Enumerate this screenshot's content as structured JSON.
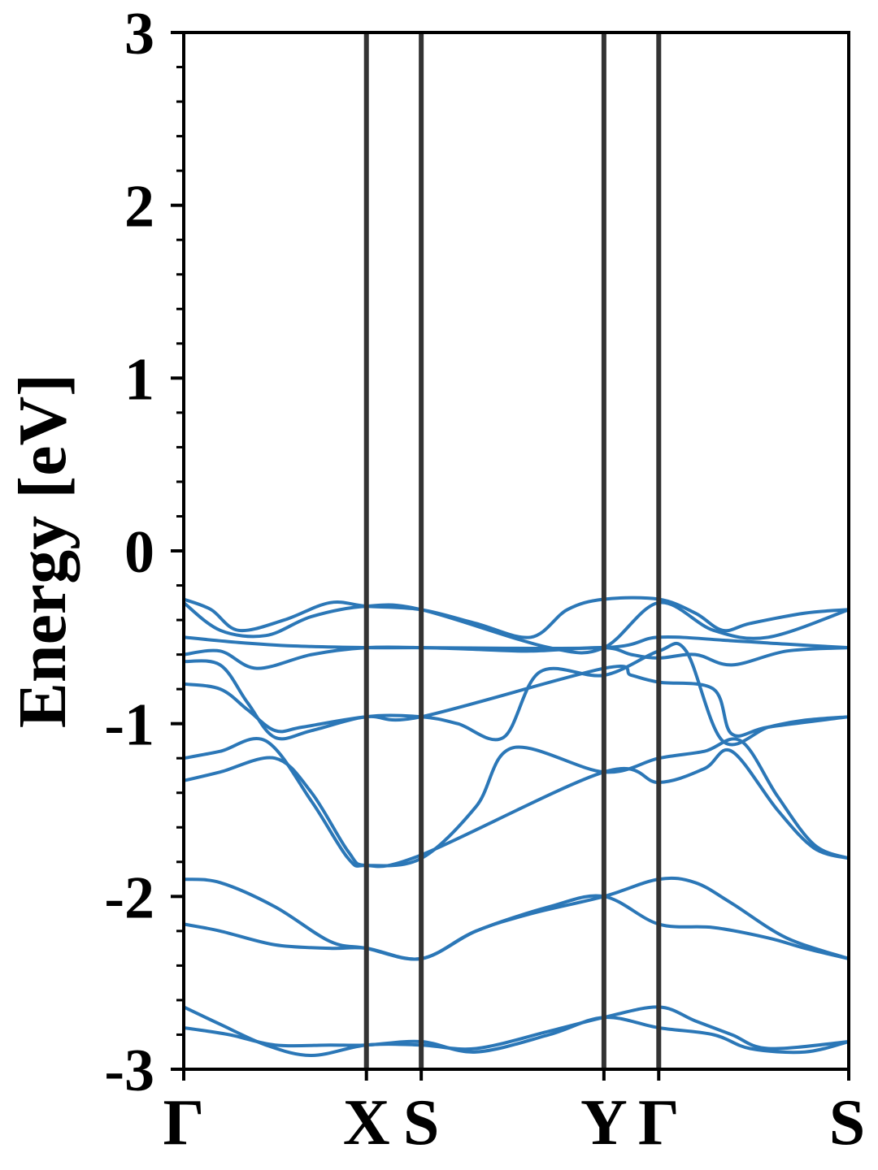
{
  "chart_data": {
    "type": "line",
    "title": "",
    "xlabel": "",
    "ylabel": "Energy [eV]",
    "ylim": [
      -3,
      3
    ],
    "yticks": [
      3,
      2,
      1,
      0,
      -1,
      -2,
      -3
    ],
    "ytick_labels": [
      "3",
      "2",
      "1",
      "0",
      "-1",
      "-2",
      "-3"
    ],
    "minor_ytick_step": 0.2,
    "xlim": [
      0,
      3.64
    ],
    "high_symmetry_points": [
      {
        "label": "Γ",
        "x": 0
      },
      {
        "label": "X",
        "x": 1.0
      },
      {
        "label": "S",
        "x": 1.3
      },
      {
        "label": "Y",
        "x": 2.3
      },
      {
        "label": "Γ",
        "x": 2.6
      },
      {
        "label": "S",
        "x": 3.64
      }
    ],
    "grid": false,
    "legend": "none",
    "line_color": "#2b77b7",
    "symmetry_line_color": "#333333",
    "series": [
      {
        "x": [
          0,
          0.15,
          0.3,
          0.55,
          0.8,
          1.0,
          1.3,
          1.6,
          1.9,
          2.1,
          2.3,
          2.6,
          2.8,
          2.95,
          3.1,
          3.4,
          3.64
        ],
        "values": [
          -0.28,
          -0.34,
          -0.46,
          -0.4,
          -0.3,
          -0.32,
          -0.34,
          -0.42,
          -0.5,
          -0.34,
          -0.28,
          -0.28,
          -0.36,
          -0.46,
          -0.42,
          -0.36,
          -0.34
        ]
      },
      {
        "x": [
          0,
          0.2,
          0.45,
          0.7,
          1.0,
          1.3,
          2.0,
          2.3,
          2.6,
          2.9,
          3.2,
          3.64
        ],
        "values": [
          -0.3,
          -0.46,
          -0.49,
          -0.38,
          -0.32,
          -0.34,
          -0.56,
          -0.56,
          -0.3,
          -0.46,
          -0.5,
          -0.34
        ]
      },
      {
        "x": [
          0,
          0.3,
          0.6,
          1.0,
          1.3,
          2.3,
          2.6,
          3.0,
          3.3,
          3.64
        ],
        "values": [
          -0.5,
          -0.53,
          -0.55,
          -0.56,
          -0.56,
          -0.56,
          -0.5,
          -0.52,
          -0.54,
          -0.56
        ]
      },
      {
        "x": [
          0,
          0.2,
          0.4,
          0.7,
          1.0,
          1.3,
          1.6,
          1.9,
          2.3,
          2.45,
          2.6,
          2.8,
          3.0,
          3.3,
          3.64
        ],
        "values": [
          -0.6,
          -0.58,
          -0.68,
          -0.6,
          -0.56,
          -0.56,
          -0.57,
          -0.58,
          -0.56,
          -0.6,
          -0.62,
          -0.6,
          -0.66,
          -0.58,
          -0.56
        ]
      },
      {
        "x": [
          0,
          0.2,
          0.35,
          0.5,
          0.7,
          1.0,
          1.3,
          1.5,
          1.75,
          1.95,
          2.3,
          2.6,
          2.75,
          2.95,
          3.2,
          3.4,
          3.64
        ],
        "values": [
          -0.64,
          -0.66,
          -0.88,
          -1.08,
          -1.04,
          -0.96,
          -0.96,
          -1.0,
          -1.08,
          -0.7,
          -0.72,
          -0.58,
          -0.58,
          -1.1,
          -1.02,
          -0.98,
          -0.96
        ]
      },
      {
        "x": [
          0,
          0.2,
          0.35,
          0.5,
          0.65,
          1.0,
          1.3,
          2.3,
          2.45,
          2.6,
          2.9,
          3.0,
          3.2,
          3.64
        ],
        "values": [
          -0.77,
          -0.8,
          -0.92,
          -1.04,
          -1.02,
          -0.96,
          -0.96,
          -0.68,
          -0.72,
          -0.76,
          -0.8,
          -1.06,
          -1.02,
          -0.96
        ]
      },
      {
        "x": [
          0,
          0.2,
          0.45,
          0.7,
          0.9,
          1.0,
          1.3,
          1.6,
          1.8,
          2.3,
          2.6,
          2.85,
          3.05,
          3.25,
          3.45,
          3.64
        ],
        "values": [
          -1.2,
          -1.16,
          -1.1,
          -1.45,
          -1.78,
          -1.82,
          -1.78,
          -1.48,
          -1.14,
          -1.28,
          -1.2,
          -1.16,
          -1.1,
          -1.42,
          -1.7,
          -1.78
        ]
      },
      {
        "x": [
          0,
          0.2,
          0.5,
          0.7,
          0.9,
          1.0,
          1.3,
          2.3,
          2.6,
          2.85,
          3.0,
          3.25,
          3.45,
          3.64
        ],
        "values": [
          -1.33,
          -1.28,
          -1.2,
          -1.4,
          -1.74,
          -1.82,
          -1.76,
          -1.28,
          -1.34,
          -1.26,
          -1.16,
          -1.5,
          -1.72,
          -1.78
        ]
      },
      {
        "x": [
          0,
          0.2,
          0.5,
          0.8,
          1.0,
          1.3,
          1.6,
          1.9,
          2.3,
          2.6,
          2.8,
          3.0,
          3.3,
          3.64
        ],
        "values": [
          -1.9,
          -1.92,
          -2.06,
          -2.26,
          -2.3,
          -2.36,
          -2.2,
          -2.1,
          -2.0,
          -1.9,
          -1.92,
          -2.04,
          -2.24,
          -2.36
        ]
      },
      {
        "x": [
          0,
          0.2,
          0.5,
          0.8,
          1.0,
          1.3,
          1.6,
          2.0,
          2.3,
          2.6,
          2.9,
          3.2,
          3.4,
          3.64
        ],
        "values": [
          -2.16,
          -2.2,
          -2.28,
          -2.3,
          -2.3,
          -2.36,
          -2.2,
          -2.06,
          -2.0,
          -2.16,
          -2.18,
          -2.24,
          -2.3,
          -2.36
        ]
      },
      {
        "x": [
          0,
          0.2,
          0.45,
          0.7,
          1.0,
          1.3,
          1.6,
          2.0,
          2.3,
          2.6,
          2.8,
          3.0,
          3.2,
          3.64
        ],
        "values": [
          -2.64,
          -2.74,
          -2.86,
          -2.92,
          -2.86,
          -2.86,
          -2.88,
          -2.78,
          -2.7,
          -2.64,
          -2.72,
          -2.8,
          -2.88,
          -2.84
        ]
      },
      {
        "x": [
          0,
          0.25,
          0.5,
          0.8,
          1.0,
          1.3,
          1.6,
          2.0,
          2.3,
          2.6,
          2.9,
          3.1,
          3.4,
          3.64
        ],
        "values": [
          -2.76,
          -2.8,
          -2.86,
          -2.86,
          -2.86,
          -2.84,
          -2.9,
          -2.8,
          -2.7,
          -2.76,
          -2.8,
          -2.88,
          -2.9,
          -2.84
        ]
      }
    ]
  }
}
